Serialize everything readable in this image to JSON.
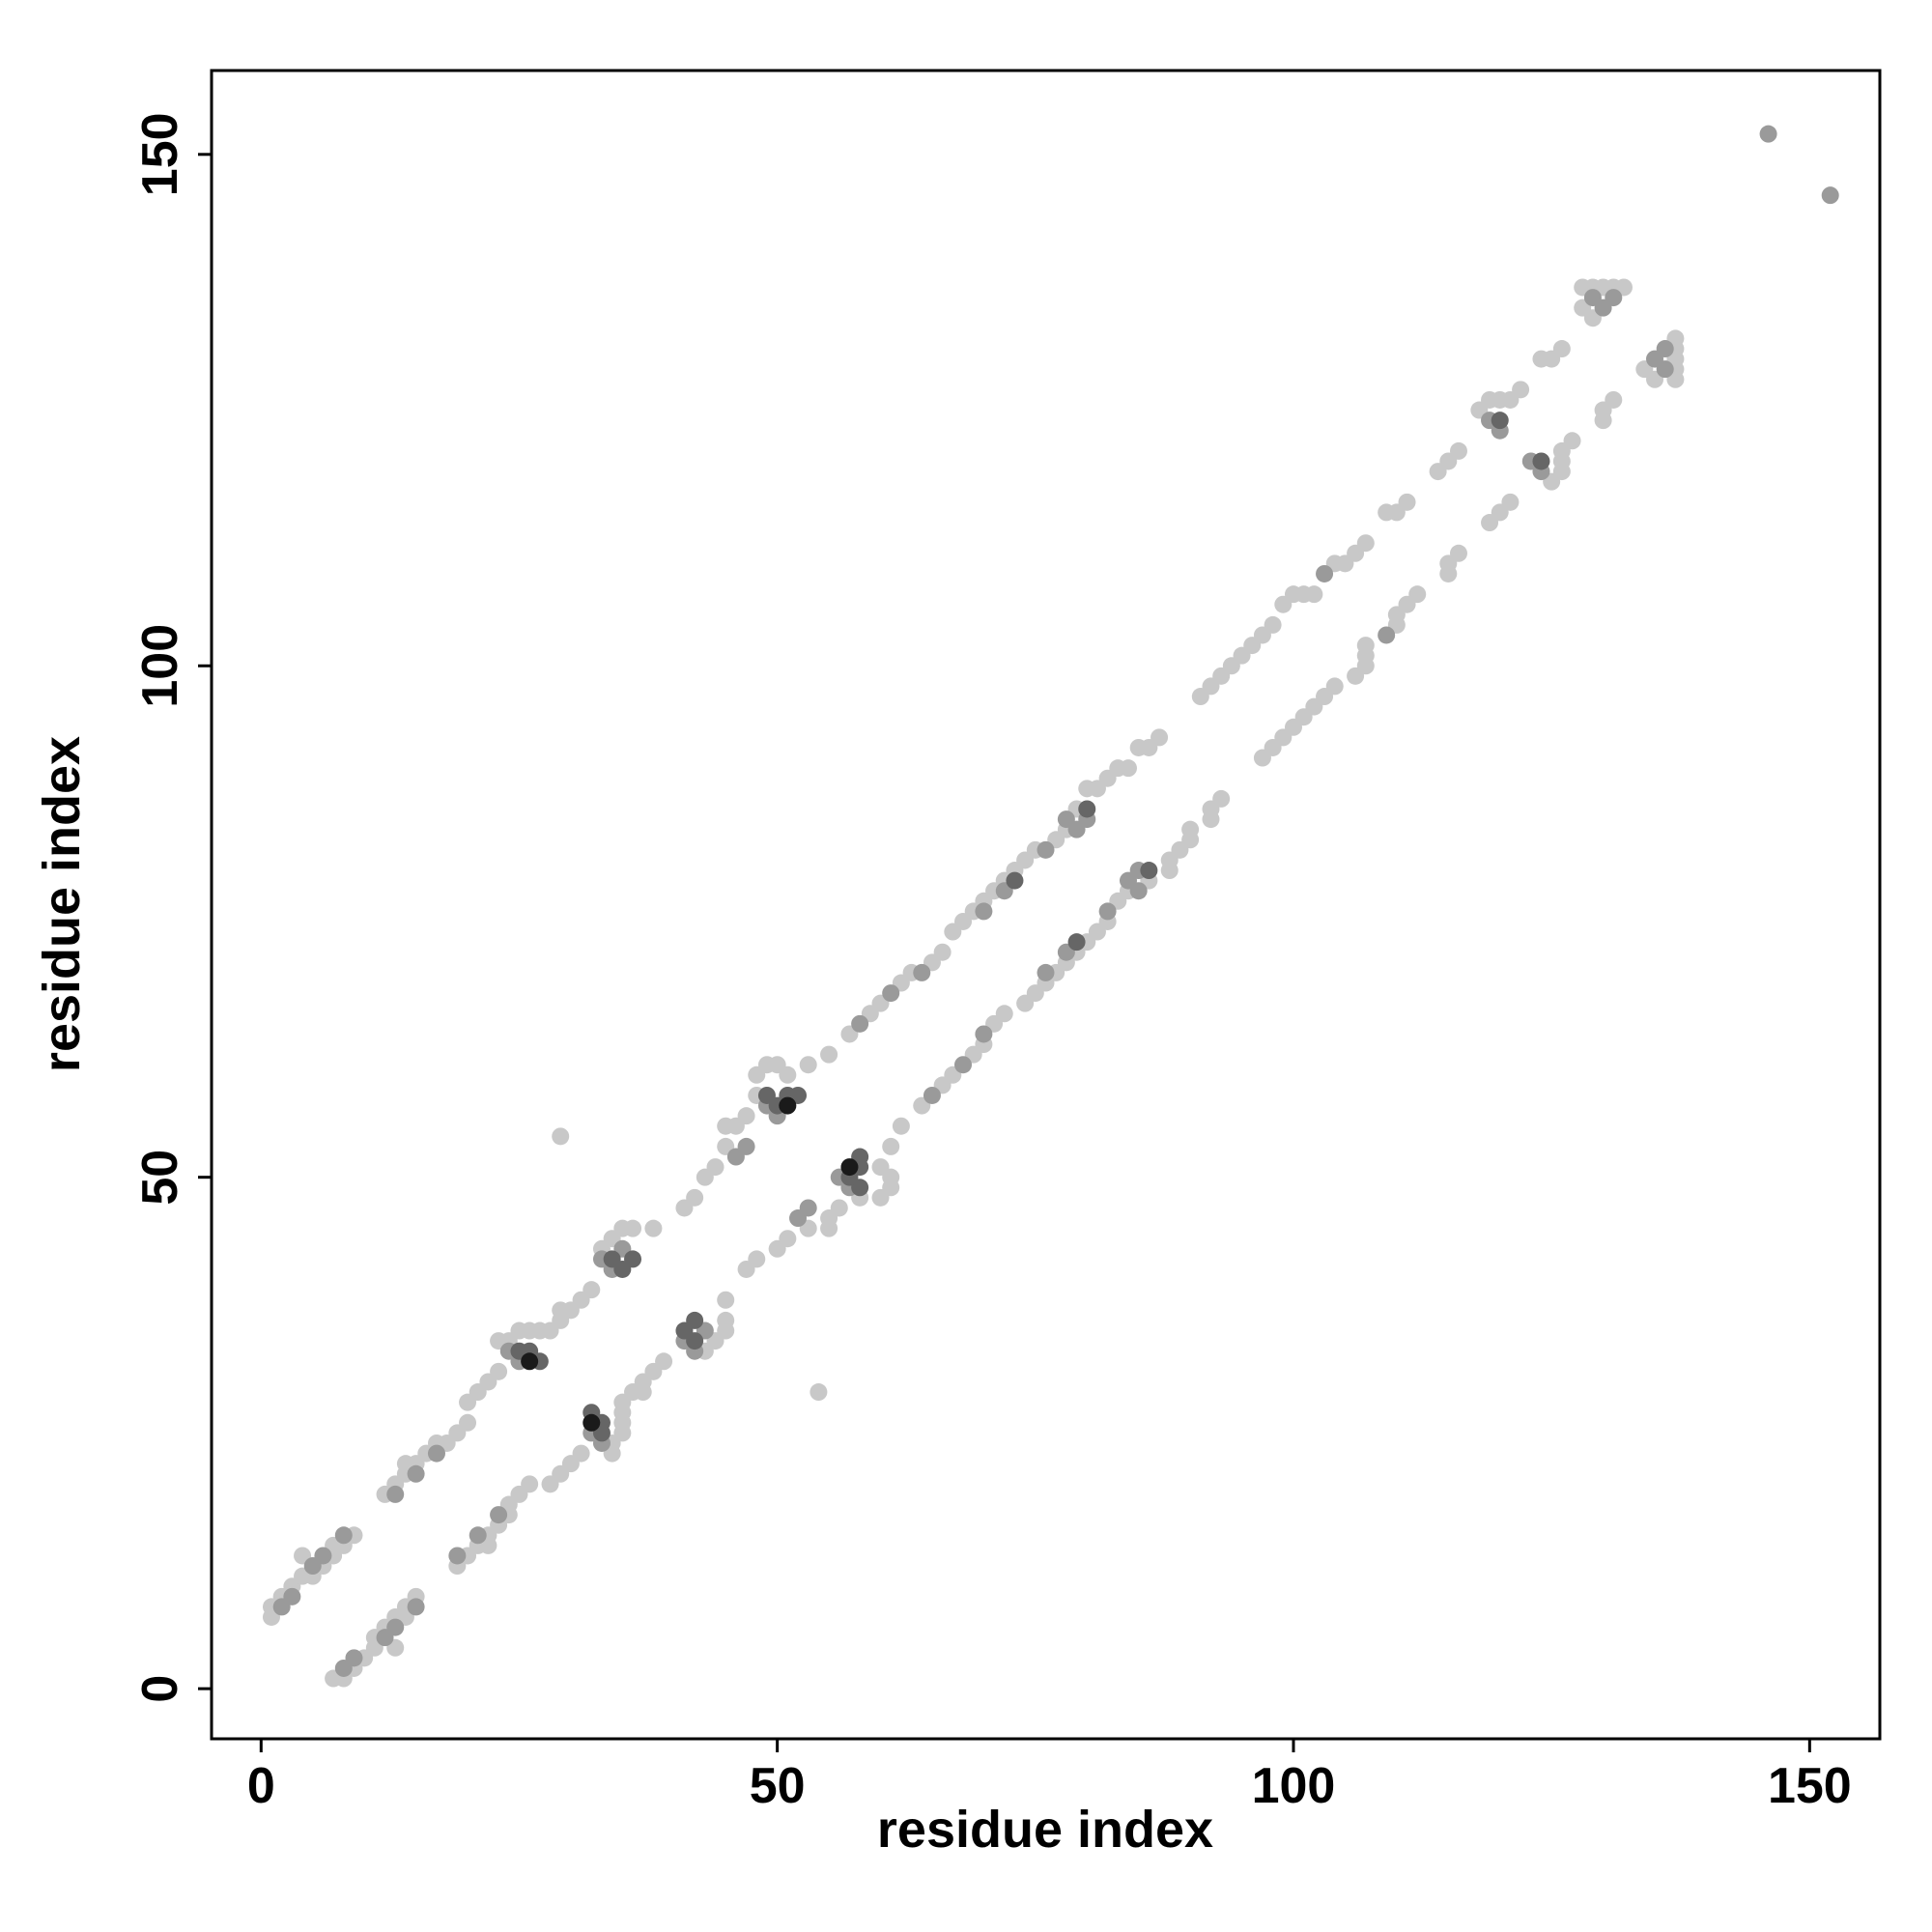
{
  "chart_data": {
    "type": "scatter",
    "x_label": "residue index",
    "y_label": "residue index",
    "xlim": [
      -4.8,
      156.8
    ],
    "ylim": [
      -4.9,
      158.2
    ],
    "xticks": [
      0,
      50,
      100,
      150
    ],
    "yticks": [
      0,
      50,
      100,
      150
    ],
    "grid": false,
    "series": [
      {
        "color": "#c8c8c8",
        "x": [
          1,
          1,
          2,
          3,
          4,
          4,
          5,
          6,
          7,
          7,
          8,
          9,
          12,
          13,
          14,
          14,
          15,
          16,
          17,
          18,
          19,
          20,
          20,
          21,
          22,
          23,
          23,
          24,
          25,
          26,
          27,
          28,
          29,
          29,
          30,
          31,
          32,
          33,
          34,
          35,
          36,
          38,
          41,
          42,
          43,
          44,
          45,
          45,
          46,
          47,
          48,
          48,
          49,
          50,
          51,
          53,
          55,
          57,
          59,
          60,
          62,
          63,
          65,
          66,
          67,
          68,
          69,
          70,
          71,
          72,
          73,
          74,
          75,
          77,
          78,
          79,
          80,
          81,
          82,
          83,
          84,
          85,
          86,
          87,
          91,
          92,
          93,
          94,
          95,
          96,
          97,
          98,
          99,
          100,
          101,
          102,
          104,
          105,
          106,
          107,
          109,
          110,
          111,
          114,
          115,
          116,
          118,
          119,
          120,
          121,
          122,
          124,
          125,
          126,
          128,
          129,
          130,
          131,
          132,
          128,
          129,
          29,
          7,
          8,
          9,
          10,
          11,
          13,
          11,
          12,
          13,
          14,
          14,
          15,
          19,
          20,
          21,
          22,
          22,
          23,
          24,
          24,
          25,
          26,
          28,
          29,
          30,
          31,
          34,
          34,
          35,
          35,
          35,
          35,
          36,
          37,
          37,
          38,
          39,
          43,
          44,
          45,
          45,
          45,
          47,
          48,
          50,
          51,
          53,
          55,
          55,
          56,
          58,
          60,
          61,
          61,
          60,
          61,
          62,
          64,
          66,
          67,
          69,
          70,
          71,
          72,
          74,
          75,
          76,
          77,
          78,
          79,
          80,
          81,
          82,
          83,
          84,
          86,
          88,
          88,
          89,
          90,
          90,
          92,
          92,
          93,
          97,
          98,
          99,
          100,
          101,
          102,
          103,
          104,
          106,
          107,
          107,
          107,
          110,
          110,
          111,
          112,
          115,
          115,
          116,
          119,
          120,
          121,
          125,
          126,
          126,
          126,
          127,
          130,
          130,
          131,
          137,
          137,
          137,
          137,
          137,
          135,
          134,
          54
        ],
        "y": [
          7,
          8,
          9,
          10,
          11,
          13,
          11,
          12,
          13,
          14,
          14,
          15,
          19,
          20,
          21,
          22,
          22,
          23,
          24,
          24,
          25,
          26,
          28,
          29,
          30,
          31,
          34,
          34,
          35,
          35,
          35,
          35,
          36,
          37,
          37,
          38,
          39,
          43,
          44,
          45,
          45,
          45,
          47,
          48,
          50,
          51,
          53,
          55,
          55,
          56,
          58,
          60,
          61,
          61,
          60,
          61,
          62,
          64,
          66,
          67,
          69,
          70,
          71,
          72,
          74,
          75,
          76,
          77,
          78,
          79,
          80,
          81,
          82,
          83,
          84,
          86,
          88,
          88,
          89,
          90,
          90,
          92,
          92,
          93,
          97,
          98,
          99,
          100,
          101,
          102,
          103,
          104,
          106,
          107,
          107,
          107,
          110,
          110,
          111,
          112,
          115,
          115,
          116,
          119,
          120,
          121,
          125,
          126,
          126,
          126,
          127,
          130,
          130,
          131,
          137,
          137,
          137,
          137,
          137,
          135,
          134,
          54,
          1,
          1,
          2,
          3,
          4,
          4,
          5,
          6,
          7,
          7,
          8,
          9,
          12,
          13,
          14,
          14,
          15,
          16,
          17,
          18,
          19,
          20,
          20,
          21,
          22,
          23,
          23,
          24,
          25,
          26,
          27,
          28,
          29,
          29,
          30,
          31,
          32,
          33,
          34,
          35,
          36,
          38,
          41,
          42,
          43,
          44,
          45,
          45,
          46,
          47,
          48,
          48,
          49,
          50,
          51,
          53,
          55,
          57,
          59,
          60,
          62,
          63,
          65,
          66,
          67,
          68,
          69,
          70,
          71,
          72,
          73,
          74,
          75,
          77,
          78,
          79,
          80,
          81,
          82,
          83,
          84,
          85,
          86,
          87,
          91,
          92,
          93,
          94,
          95,
          96,
          97,
          98,
          99,
          100,
          101,
          102,
          104,
          105,
          106,
          107,
          109,
          110,
          111,
          114,
          115,
          116,
          118,
          119,
          120,
          121,
          122,
          124,
          125,
          126,
          128,
          129,
          130,
          131,
          132,
          128,
          129,
          29
        ]
      },
      {
        "color": "#9a9a9a",
        "x": [
          2,
          3,
          5,
          6,
          8,
          13,
          15,
          17,
          24,
          25,
          33,
          34,
          35,
          46,
          47,
          49,
          50,
          58,
          61,
          64,
          70,
          72,
          76,
          78,
          79,
          80,
          103,
          119,
          120,
          129,
          130,
          131,
          146,
          8,
          9,
          12,
          13,
          15,
          19,
          21,
          23,
          33,
          32,
          42,
          41,
          43,
          52,
          53,
          57,
          56,
          65,
          68,
          70,
          76,
          78,
          82,
          85,
          84,
          85,
          109,
          124,
          123,
          136,
          135,
          136,
          152
        ],
        "y": [
          8,
          9,
          12,
          13,
          15,
          19,
          21,
          23,
          33,
          32,
          42,
          41,
          43,
          52,
          53,
          57,
          56,
          65,
          68,
          70,
          76,
          78,
          82,
          85,
          84,
          85,
          109,
          124,
          123,
          136,
          135,
          136,
          152,
          2,
          3,
          5,
          6,
          8,
          13,
          15,
          17,
          24,
          25,
          33,
          34,
          35,
          46,
          47,
          49,
          50,
          58,
          61,
          64,
          70,
          72,
          76,
          78,
          79,
          80,
          103,
          119,
          120,
          129,
          130,
          131,
          146
        ]
      },
      {
        "color": "#666666",
        "x": [
          25,
          26,
          27,
          34,
          35,
          36,
          49,
          50,
          51,
          52,
          73,
          80,
          120,
          33,
          33,
          32,
          42,
          41,
          42,
          58,
          57,
          58,
          58,
          79,
          86,
          124
        ],
        "y": [
          33,
          33,
          32,
          42,
          41,
          42,
          58,
          57,
          58,
          58,
          79,
          86,
          124,
          25,
          26,
          27,
          34,
          35,
          36,
          49,
          50,
          51,
          52,
          73,
          80,
          120
        ]
      },
      {
        "color": "#1a1a1a",
        "x": [
          26,
          51,
          32,
          57
        ],
        "y": [
          32,
          57,
          26,
          51
        ]
      }
    ]
  }
}
